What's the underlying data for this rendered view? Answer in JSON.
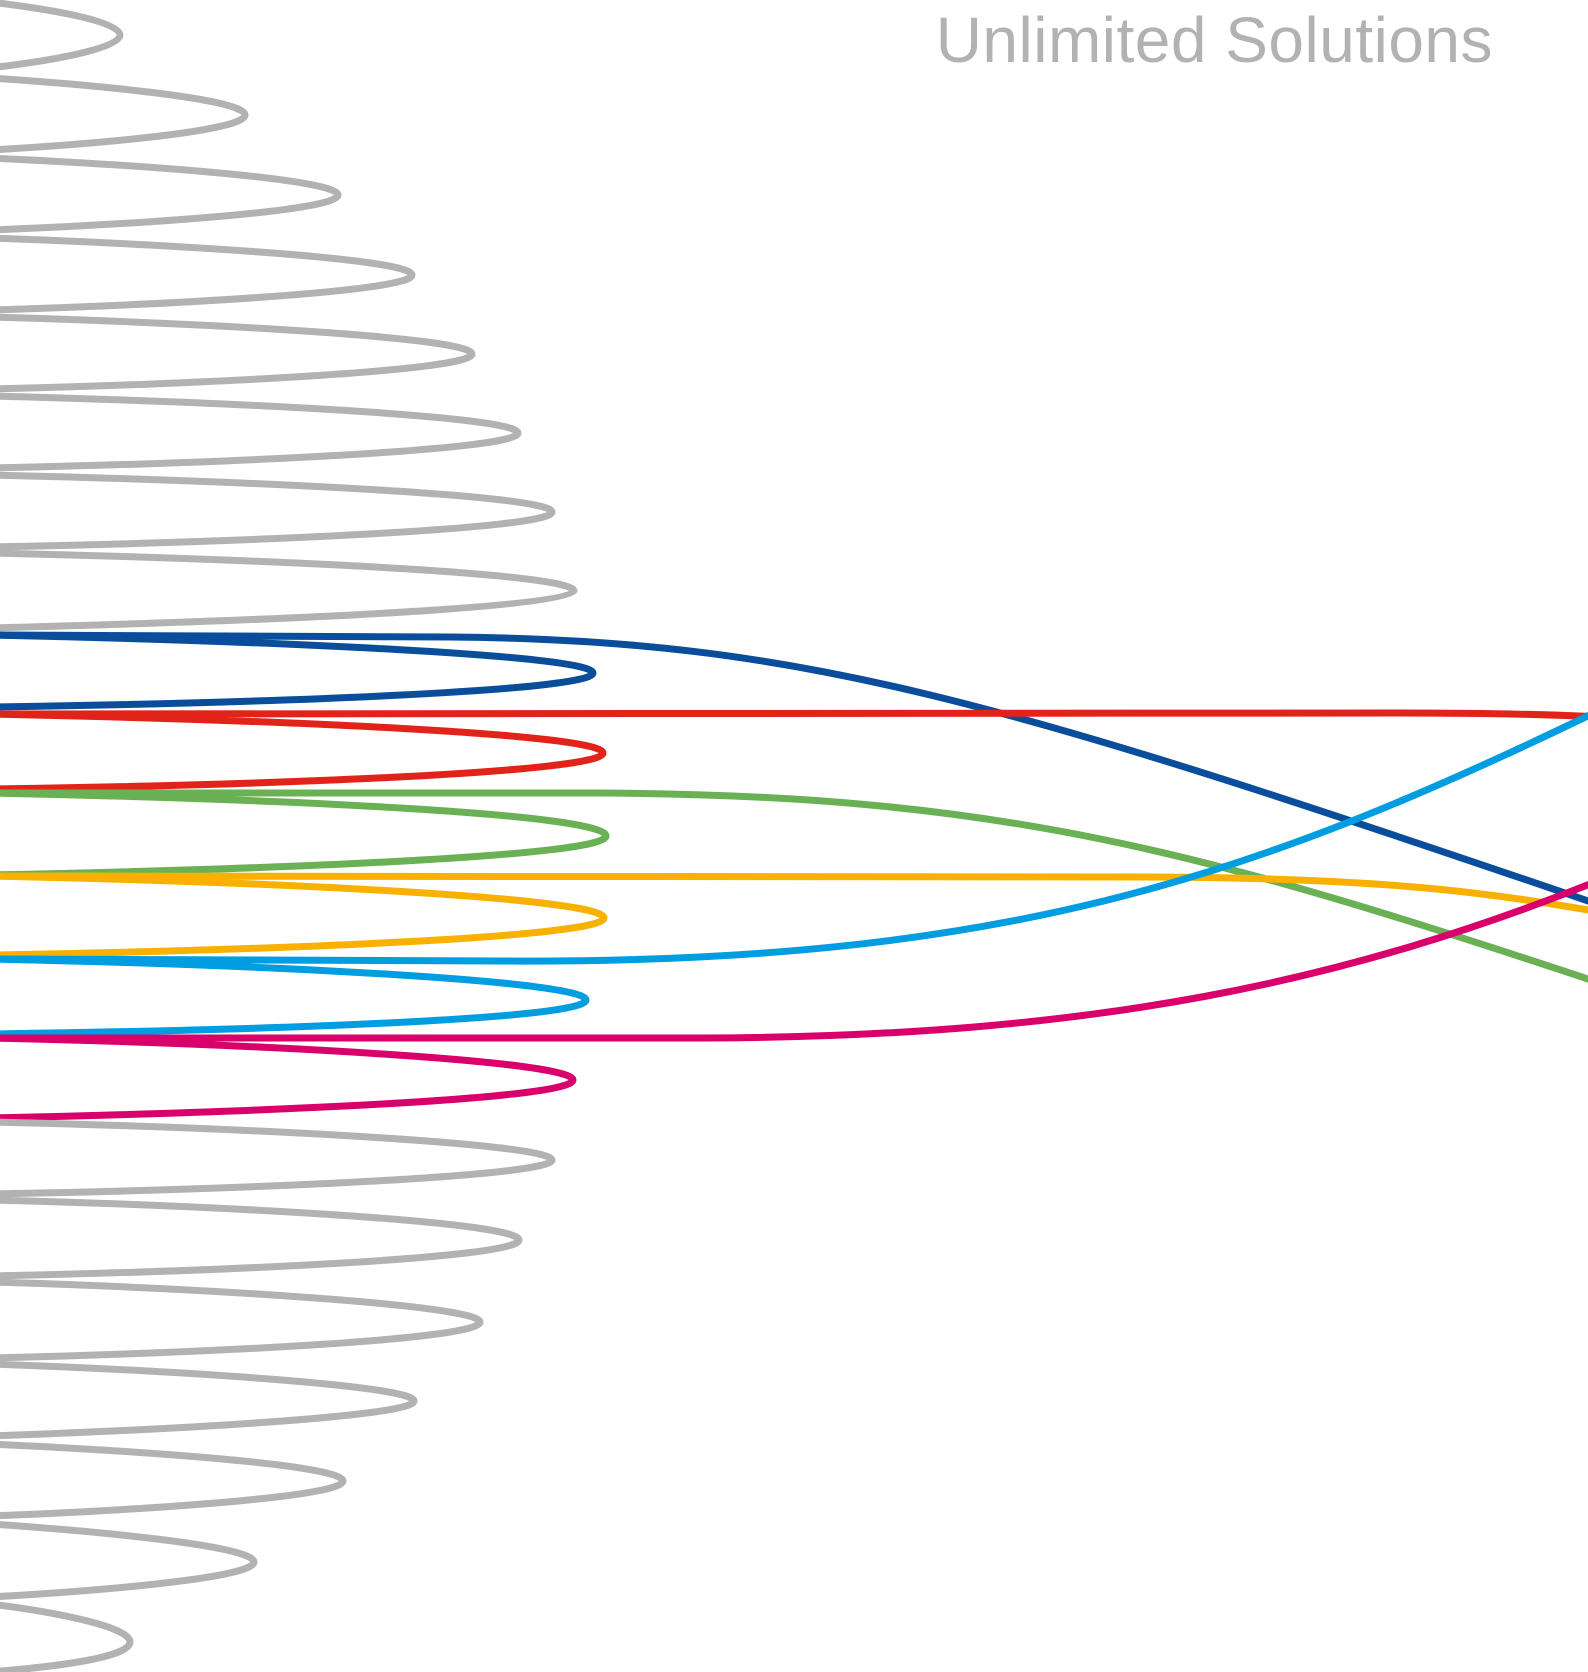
{
  "tagline": {
    "text": "Unlimited Solutions",
    "color": "#B2B2B2"
  },
  "colors": {
    "grey": "#B2B2B2",
    "blue": "#0A4E9B",
    "red": "#E2231A",
    "green": "#6AB155",
    "yellow": "#F8B100",
    "cyan": "#009EE0",
    "magenta": "#D9006C"
  }
}
